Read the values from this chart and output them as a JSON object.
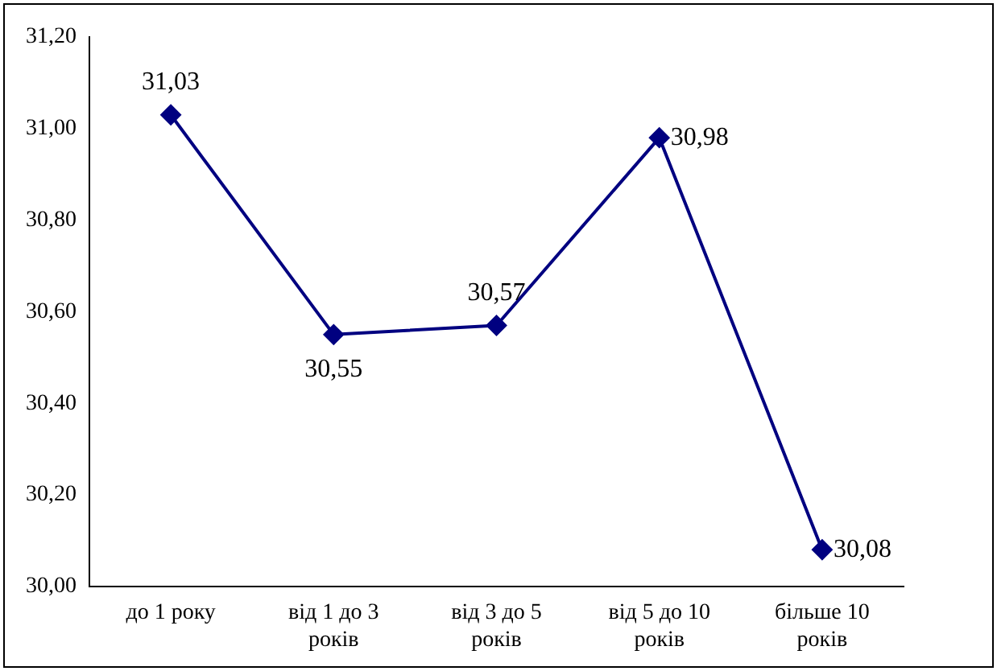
{
  "chart_data": {
    "type": "line",
    "categories": [
      "до 1 року",
      "від 1 до 3 років",
      "від 3 до 5 років",
      "від 5 до 10 років",
      "більше 10 років"
    ],
    "series": [
      {
        "color": "#000080",
        "values": [
          31.03,
          30.55,
          30.57,
          30.98,
          30.08
        ],
        "value_labels": [
          "31,03",
          "30,55",
          "30,57",
          "30,98",
          "30,08"
        ]
      }
    ],
    "ylim": [
      30.0,
      31.2
    ],
    "yticks": [
      {
        "value": 30.0,
        "label": "30,00"
      },
      {
        "value": 30.2,
        "label": "30,20"
      },
      {
        "value": 30.4,
        "label": "30,40"
      },
      {
        "value": 30.6,
        "label": "30,60"
      },
      {
        "value": 30.8,
        "label": "30,80"
      },
      {
        "value": 31.0,
        "label": "31,00"
      },
      {
        "value": 31.2,
        "label": "31,20"
      }
    ],
    "grid": false,
    "legend": false,
    "marker": "diamond",
    "line_style": "solid"
  }
}
